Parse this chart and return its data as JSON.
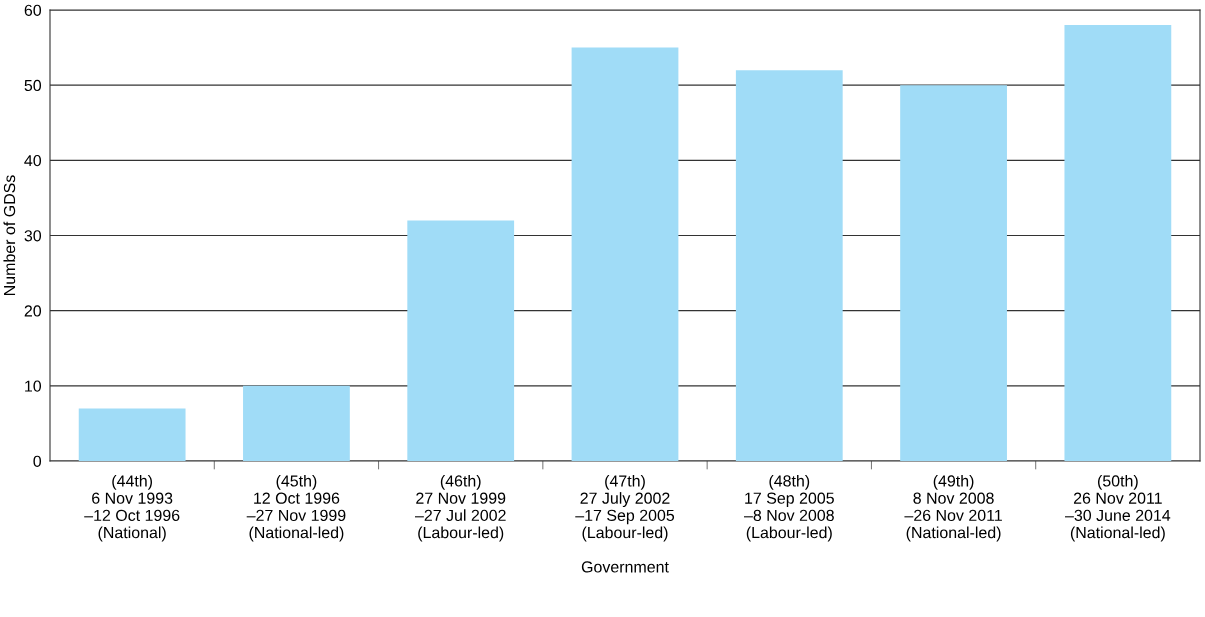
{
  "chart_data": {
    "type": "bar",
    "xlabel": "Government",
    "ylabel": "Number of GDSs",
    "categories": [
      "(44th)\n6 Nov 1993\n–12 Oct 1996\n(National)",
      "(45th)\n12 Oct 1996\n–27 Nov 1999\n(National-led)",
      "(46th)\n27 Nov 1999\n–27 Jul 2002\n(Labour-led)",
      "(47th)\n27 July 2002\n–17 Sep 2005\n(Labour-led)",
      "(48th)\n17 Sep 2005\n–8 Nov 2008\n(Labour-led)",
      "(49th)\n8 Nov 2008\n–26 Nov 2011\n(National-led)",
      "(50th)\n26 Nov 2011\n–30 June 2014\n(National-led)"
    ],
    "values": [
      7,
      10,
      32,
      55,
      52,
      50,
      58
    ],
    "color": "#a0dcf7",
    "ylim": [
      0,
      60
    ],
    "yticks": [
      0,
      10,
      20,
      30,
      40,
      50,
      60
    ],
    "grid": "y"
  }
}
